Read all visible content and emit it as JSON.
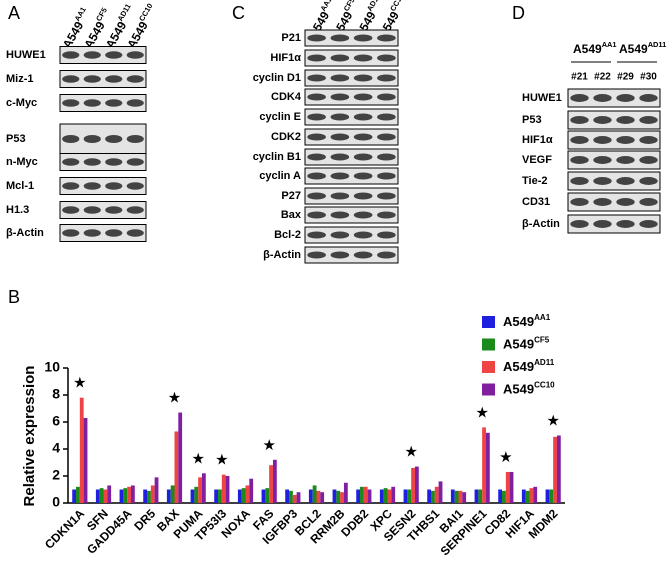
{
  "blots": [
    {
      "label": "A",
      "columns": [
        {
          "text": "A549",
          "sup": "AA1"
        },
        {
          "text": "A549",
          "sup": "CF5"
        },
        {
          "text": "A549",
          "sup": "AD11"
        },
        {
          "text": "A549",
          "sup": "CC10"
        }
      ],
      "rows": [
        "HUWE1",
        "Miz-1",
        "c-Myc",
        "P53",
        "n-Myc",
        "Mcl-1",
        "H1.3",
        "β-Actin"
      ]
    },
    {
      "label": "C",
      "columns": [
        {
          "text": "A549",
          "sup": "AA1"
        },
        {
          "text": "A549",
          "sup": "CF5"
        },
        {
          "text": "A549",
          "sup": "AD11"
        },
        {
          "text": "A549",
          "sup": "CC10"
        }
      ],
      "rows": [
        "P21",
        "HIF1α",
        "cyclin D1",
        "CDK4",
        "cyclin E",
        "CDK2",
        "cyclin B1",
        "cyclin A",
        "P27",
        "Bax",
        "Bcl-2",
        "β-Actin"
      ]
    },
    {
      "label": "D",
      "groups": [
        {
          "text": "A549",
          "sup": "AA1"
        },
        {
          "text": "A549",
          "sup": "AD11"
        }
      ],
      "columns": [
        "#21",
        "#22",
        "#29",
        "#30"
      ],
      "rows": [
        "HUWE1",
        "P53",
        "HIF1α",
        "VEGF",
        "Tie-2",
        "CD31",
        "β-Actin"
      ]
    }
  ],
  "chart_data": {
    "type": "bar",
    "panel_label": "B",
    "y_label": "Relative expression",
    "categories": [
      "CDKN1A",
      "SFN",
      "GADD45A",
      "DR5",
      "BAX",
      "PUMA",
      "TP53I3",
      "NOXA",
      "FAS",
      "IGFBP3",
      "BCL2",
      "RRM2B",
      "DDB2",
      "XPC",
      "SESN2",
      "THBS1",
      "BAI1",
      "SERPINE1",
      "CD82",
      "HIF1A",
      "MDM2"
    ],
    "series": [
      {
        "name": "A549",
        "superscript": "AA1",
        "color": "#1f1fe0",
        "values": [
          1,
          1,
          1,
          1,
          1,
          1,
          1,
          1,
          1,
          1,
          1,
          1,
          1,
          1,
          1,
          1,
          1,
          1,
          1,
          1,
          1
        ]
      },
      {
        "name": "A549",
        "superscript": "CF5",
        "color": "#1a8a1a",
        "values": [
          1.2,
          1.1,
          1.1,
          0.9,
          1.3,
          1.2,
          1.0,
          1.1,
          1.1,
          0.9,
          1.3,
          0.9,
          1.2,
          1.1,
          1.0,
          0.9,
          0.9,
          1.0,
          0.9,
          0.9,
          1.0
        ]
      },
      {
        "name": "A549",
        "superscript": "AD11",
        "color": "#ee4444",
        "values": [
          7.8,
          1.0,
          1.2,
          1.3,
          5.3,
          1.9,
          2.1,
          1.3,
          2.8,
          0.6,
          0.9,
          0.8,
          1.2,
          1.0,
          2.6,
          1.2,
          0.9,
          5.6,
          2.3,
          1.1,
          4.9
        ]
      },
      {
        "name": "A549",
        "superscript": "CC10",
        "color": "#8020a0",
        "values": [
          6.3,
          1.3,
          1.3,
          1.9,
          6.7,
          2.2,
          2.0,
          1.8,
          3.2,
          0.8,
          0.8,
          1.5,
          1.0,
          1.2,
          2.7,
          1.6,
          0.8,
          5.2,
          2.3,
          1.2,
          5.0
        ]
      }
    ],
    "annotations": [
      {
        "text": "★",
        "category": "CDKN1A"
      },
      {
        "text": "★",
        "category": "BAX"
      },
      {
        "text": "★",
        "category": "PUMA"
      },
      {
        "text": "★",
        "category": "TP53I3"
      },
      {
        "text": "★",
        "category": "FAS"
      },
      {
        "text": "★",
        "category": "SESN2"
      },
      {
        "text": "★",
        "category": "SERPINE1"
      },
      {
        "text": "★",
        "category": "CD82"
      },
      {
        "text": "★",
        "category": "MDM2"
      }
    ],
    "ylim": [
      0,
      10
    ],
    "yticks": [
      0,
      2,
      4,
      6,
      8,
      10
    ],
    "legend": "top-right"
  }
}
